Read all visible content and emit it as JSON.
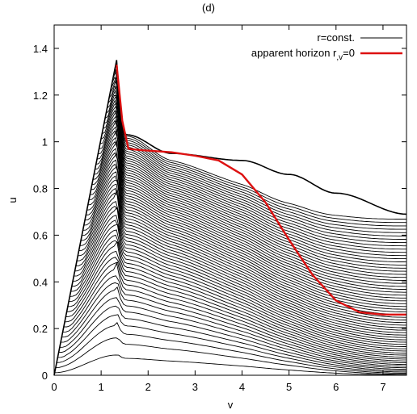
{
  "chart_data": {
    "type": "line",
    "title": "(d)",
    "xlabel": "v",
    "ylabel": "u",
    "xlim": [
      0,
      7.5
    ],
    "ylim": [
      0,
      1.5
    ],
    "x_ticks": [
      0,
      1,
      2,
      3,
      4,
      5,
      6,
      7
    ],
    "y_ticks": [
      0,
      0.2,
      0.4,
      0.6,
      0.8,
      1,
      1.2,
      1.4
    ],
    "y_tick_labels": [
      "0",
      "0.2",
      "0.4",
      "0.6",
      "0.8",
      "1",
      "1.2",
      "1.4"
    ],
    "legend_position": "top-right",
    "grid": false,
    "series": [
      {
        "name": "r=const.",
        "color": "#000000",
        "description": "family of r = const. curves",
        "peak": {
          "x": 1.33,
          "y": 1.35
        },
        "ridge_top": [
          [
            1.33,
            1.35
          ],
          [
            1.55,
            1.03
          ],
          [
            2.5,
            0.95
          ],
          [
            4.0,
            0.92
          ],
          [
            5.0,
            0.86
          ],
          [
            6.0,
            0.78
          ],
          [
            7.5,
            0.69
          ]
        ],
        "right_end_top": 0.69
      },
      {
        "name": "apparent horizon r,v=0",
        "color": "#dd1111",
        "points": [
          [
            1.33,
            1.33
          ],
          [
            1.45,
            1.09
          ],
          [
            1.58,
            0.97
          ],
          [
            1.8,
            0.965
          ],
          [
            2.5,
            0.955
          ],
          [
            3.0,
            0.94
          ],
          [
            3.5,
            0.92
          ],
          [
            4.0,
            0.86
          ],
          [
            4.5,
            0.74
          ],
          [
            5.0,
            0.58
          ],
          [
            5.5,
            0.43
          ],
          [
            6.0,
            0.32
          ],
          [
            6.5,
            0.27
          ],
          [
            7.0,
            0.26
          ],
          [
            7.5,
            0.26
          ]
        ]
      }
    ]
  },
  "legend": {
    "entries": [
      {
        "label": "r=const.",
        "color": "#000000"
      },
      {
        "label": "apparent horizon r",
        "sub": ",v",
        "suffix": "=0",
        "color": "#dd1111"
      }
    ]
  }
}
